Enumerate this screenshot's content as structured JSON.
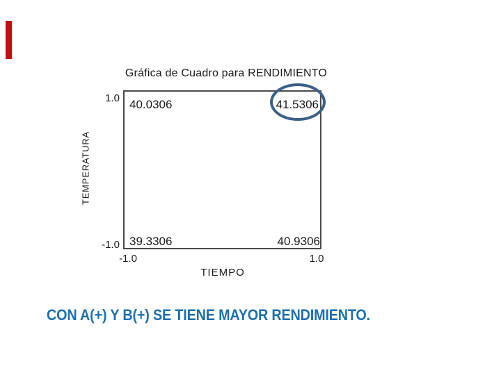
{
  "slide": {
    "accent_bar_color": "#c01010",
    "background_color": "#ffffff"
  },
  "caption": {
    "text": "CON A(+) Y B(+) SE TIENE MAYOR RENDIMIENTO.",
    "color": "#1e6fb2"
  },
  "chart_data": {
    "type": "scatter",
    "variant": "square-plot-2x2-factorial-design",
    "title": "Gráfica de Cuadro para RENDIMIENTO",
    "xlabel": "TIEMPO",
    "ylabel": "TEMPERATURA",
    "xlim": [
      -1.0,
      1.0
    ],
    "ylim": [
      -1.0,
      1.0
    ],
    "x_ticks": [
      "-1.0",
      "1.0"
    ],
    "y_ticks": [
      "1.0",
      "-1.0"
    ],
    "grid": false,
    "legend": false,
    "points": [
      {
        "x": -1,
        "y": 1,
        "label": "40.0306",
        "circled": false
      },
      {
        "x": 1,
        "y": 1,
        "label": "41.5306",
        "circled": true
      },
      {
        "x": -1,
        "y": -1,
        "label": "39.3306",
        "circled": false
      },
      {
        "x": 1,
        "y": -1,
        "label": "40.9306",
        "circled": false
      }
    ],
    "annotation": {
      "shape": "ellipse",
      "around_value": "41.5306",
      "stroke_color": "#3c6086"
    }
  }
}
